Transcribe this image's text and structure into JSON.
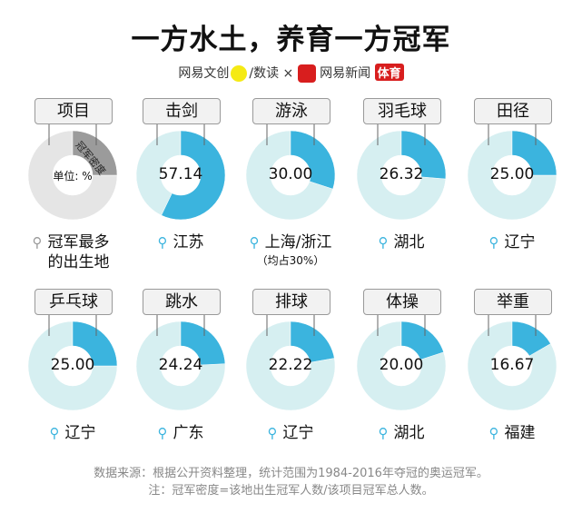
{
  "title": "一方水土，养育一方冠军",
  "brand": {
    "a": "网易文创",
    "b": "数读",
    "x": "×",
    "c": "网易新闻",
    "d": "体育"
  },
  "colors": {
    "fill": "#3bb4de",
    "rest": "#d6eff1",
    "legend_fill": "#9b9b9b",
    "legend_rest": "#e5e5e5"
  },
  "legend": {
    "label": "项目",
    "slice_label": "冠军密度",
    "center": "单位: %",
    "location": "冠军最多的出生地"
  },
  "chart_data": {
    "type": "pie",
    "unit": "%",
    "items": [
      {
        "sport": "击剑",
        "value": 57.14,
        "label": "57.14",
        "location": "江苏"
      },
      {
        "sport": "游泳",
        "value": 30.0,
        "label": "30.00",
        "location": "上海/浙江",
        "sub": "（均占30%）"
      },
      {
        "sport": "羽毛球",
        "value": 26.32,
        "label": "26.32",
        "location": "湖北"
      },
      {
        "sport": "田径",
        "value": 25.0,
        "label": "25.00",
        "location": "辽宁"
      },
      {
        "sport": "乒乓球",
        "value": 25.0,
        "label": "25.00",
        "location": "辽宁"
      },
      {
        "sport": "跳水",
        "value": 24.24,
        "label": "24.24",
        "location": "广东"
      },
      {
        "sport": "排球",
        "value": 22.22,
        "label": "22.22",
        "location": "辽宁"
      },
      {
        "sport": "体操",
        "value": 20.0,
        "label": "20.00",
        "location": "湖北"
      },
      {
        "sport": "举重",
        "value": 16.67,
        "label": "16.67",
        "location": "福建"
      }
    ]
  },
  "notes": {
    "source": "数据来源：根据公开资料整理，统计范围为1984-2016年夺冠的奥运冠军。",
    "formula": "注：冠军密度=该地出生冠军人数/该项目冠军总人数。"
  }
}
